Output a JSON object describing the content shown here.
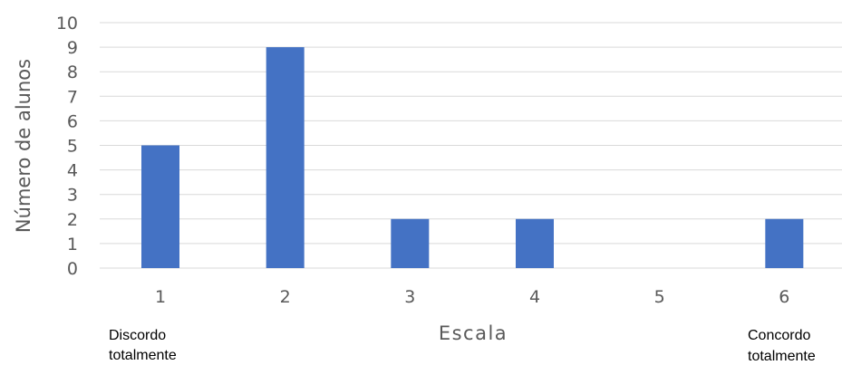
{
  "chart_data": {
    "type": "bar",
    "categories": [
      "1",
      "2",
      "3",
      "4",
      "5",
      "6"
    ],
    "values": [
      5,
      9,
      2,
      2,
      0,
      2
    ],
    "xlabel": "Escala",
    "ylabel": "Número de alunos",
    "ylim": [
      0,
      10
    ],
    "yticks": [
      0,
      1,
      2,
      3,
      4,
      5,
      6,
      7,
      8,
      9,
      10
    ],
    "grid": true,
    "legend": "none",
    "bar_color": "#4472c4",
    "annotations": {
      "left_line1": "Discordo",
      "left_line2": "totalmente",
      "right_line1": "Concordo",
      "right_line2": "totalmente"
    }
  }
}
